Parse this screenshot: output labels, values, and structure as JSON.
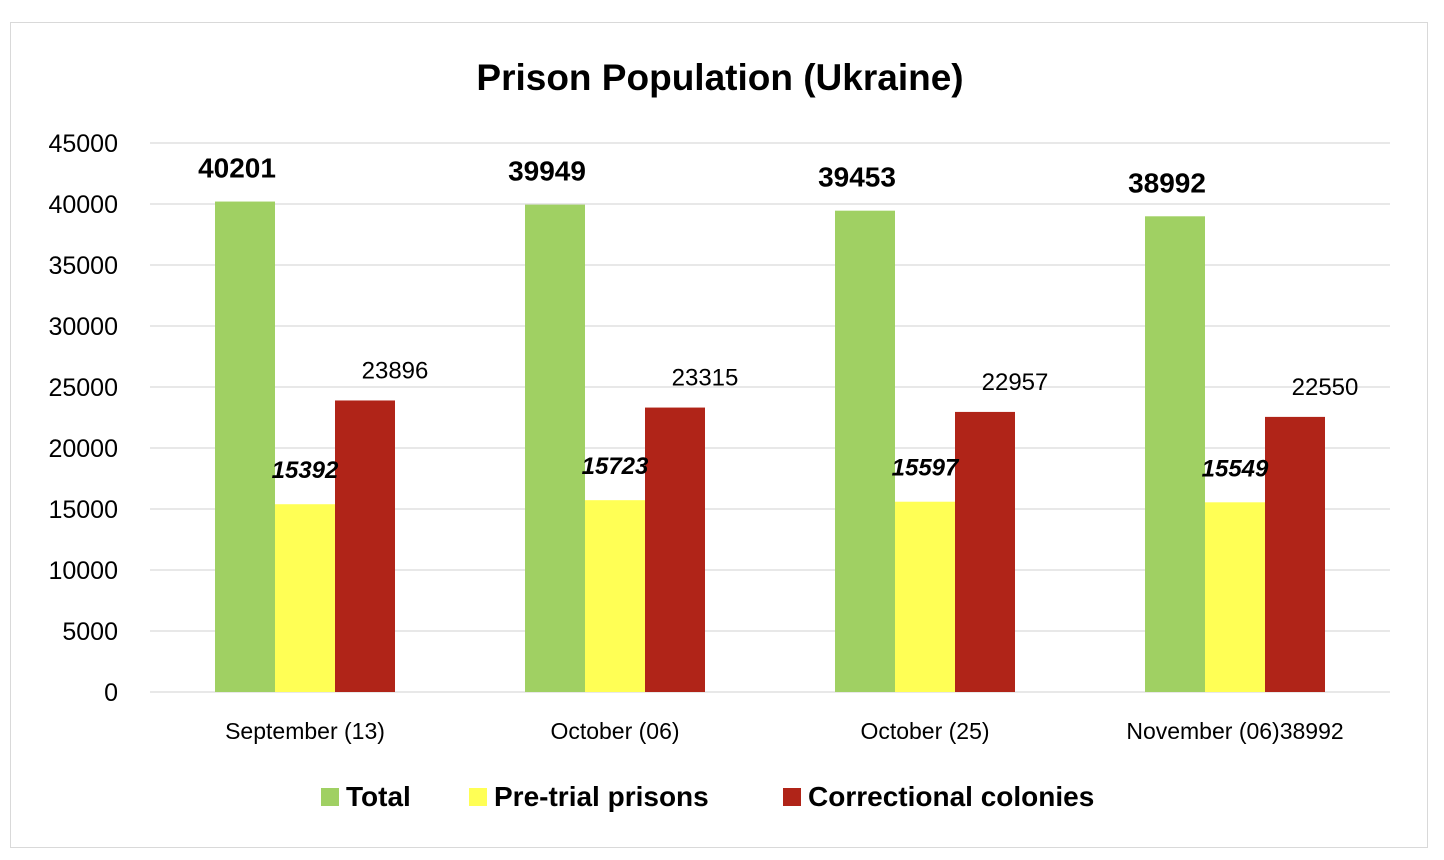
{
  "chart_data": {
    "type": "bar",
    "title": "Prison Population (Ukraine)",
    "xlabel": "",
    "ylabel": "",
    "ylim": [
      0,
      45000
    ],
    "yticks": [
      0,
      5000,
      10000,
      15000,
      20000,
      25000,
      30000,
      35000,
      40000,
      45000
    ],
    "grid": true,
    "legend_position": "bottom",
    "categories": [
      "September (13)",
      "October (06)",
      "October  (25)",
      "November (06)38992"
    ],
    "series": [
      {
        "name": "Total",
        "color": "#a0d063",
        "values": [
          40201,
          39949,
          39453,
          38992
        ],
        "labels": [
          "40201",
          "39949",
          "39453",
          "38992"
        ]
      },
      {
        "name": "Pre-trial prisons",
        "color": "#ffff55",
        "values": [
          15392,
          15723,
          15597,
          15549
        ],
        "labels": [
          "15392",
          "15723",
          "15597",
          "15549"
        ]
      },
      {
        "name": "Correctional colonies",
        "color": "#b02418",
        "values": [
          23896,
          23315,
          22957,
          22550
        ],
        "labels": [
          "23896",
          "23315",
          "22957",
          "22550"
        ]
      }
    ]
  }
}
